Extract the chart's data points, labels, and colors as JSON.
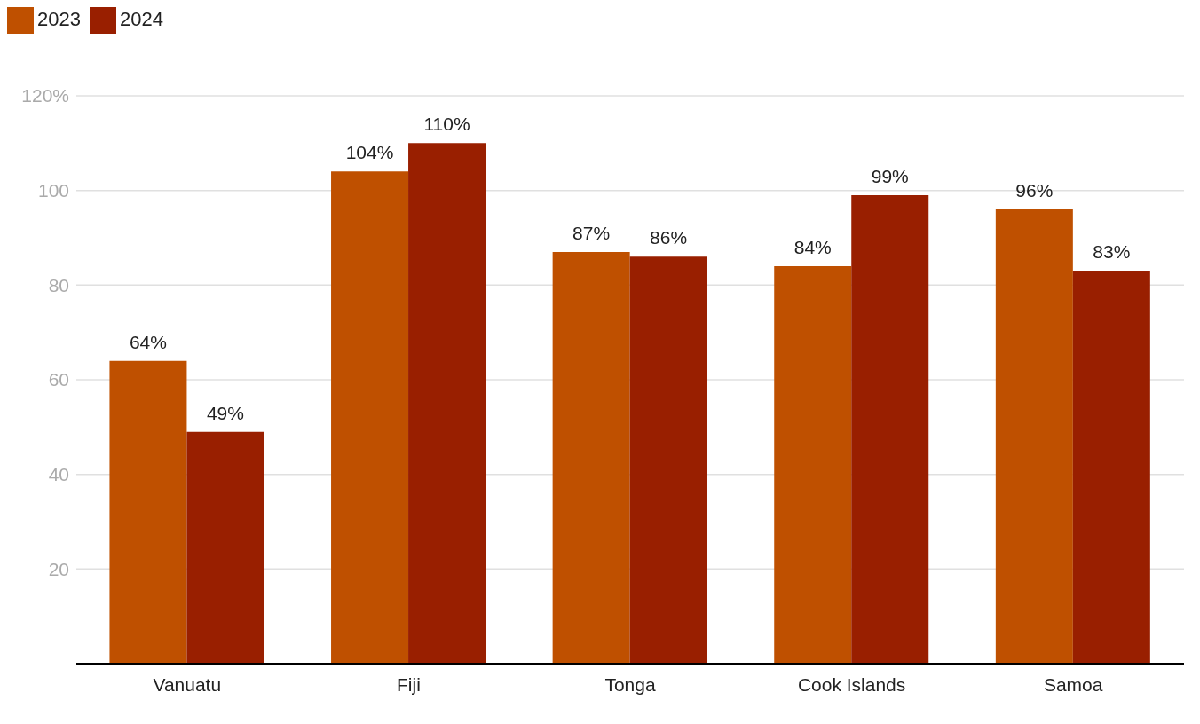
{
  "chart_data": {
    "type": "bar",
    "categories": [
      "Vanuatu",
      "Fiji",
      "Tonga",
      "Cook Islands",
      "Samoa"
    ],
    "series": [
      {
        "name": "2023",
        "color": "#bf5000",
        "values": [
          64,
          104,
          87,
          84,
          96
        ],
        "value_labels": [
          "64%",
          "104%",
          "87%",
          "84%",
          "96%"
        ]
      },
      {
        "name": "2024",
        "color": "#991f00",
        "values": [
          49,
          110,
          86,
          99,
          83
        ],
        "value_labels": [
          "49%",
          "110%",
          "86%",
          "99%",
          "83%"
        ]
      }
    ],
    "ylim": [
      0,
      120
    ],
    "yticks": [
      {
        "value": 0,
        "label": null
      },
      20,
      40,
      60,
      80,
      100,
      {
        "value": 120,
        "label": "120%"
      }
    ],
    "grid": "y",
    "legend": "top left"
  }
}
